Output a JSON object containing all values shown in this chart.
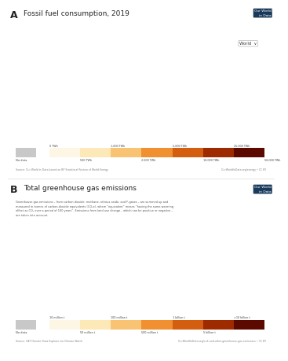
{
  "panel_a_title": "Fossil fuel consumption, 2019",
  "panel_b_title": "Total greenhouse gas emissions",
  "panel_b_subtitle": "Greenhouse gas emissions – from carbon dioxide, methane, nitrous oxide, and F-gases – are summed up and\nmeasured in tonnes of carbon-dioxide equivalents (CO₂e), where “equivalent” means “having the same warming\neffect as CO₂ over a period of 100 years”. Emissions from land use change – which can be positive or negative –\nare taken into account.",
  "panel_a_source": "Source: Our World in Data based on BP Statistical Review of World Energy",
  "panel_a_url": "OurWorldInData.org/energy • CC BY",
  "panel_b_source": "Source: CAT Climate Data Explorer via Climate Watch",
  "panel_b_url": "OurWorldInData.org/co2-and-other-greenhouse-gas-emissions • CC BY",
  "label_a": "A",
  "label_b": "B",
  "owid_badge_color": "#1a3a5c",
  "background_color": "#ffffff",
  "colorbar_a_colors": [
    "#fef6e4",
    "#fde8b8",
    "#f8c473",
    "#f09030",
    "#d45e10",
    "#9e2b00",
    "#5c0a00"
  ],
  "colorbar_b_colors": [
    "#fef6e4",
    "#fde8b8",
    "#f8c473",
    "#f09030",
    "#d45e10",
    "#9e2b00",
    "#5c0a00"
  ],
  "nodata_color": "#c8c8c8",
  "world_dropdown_text": "World",
  "cbar_a_upper": [
    "0 TWh",
    "",
    "1,000 TWh",
    "",
    "5,000 TWh",
    "",
    "25,000 TWh",
    ""
  ],
  "cbar_a_lower": [
    "",
    "500 TWh",
    "",
    "2,500 TWh",
    "",
    "10,000 TWh",
    "",
    "50,000 TWh"
  ],
  "cbar_b_upper": [
    "10 million t",
    "",
    "100 million t",
    "",
    "1 billion t",
    "",
    ">10 billion t"
  ],
  "cbar_b_lower": [
    "",
    "50 million t",
    "",
    "500 million t",
    "",
    "5 billion t",
    ""
  ],
  "fossil_colors": {
    "CHN": "#3d0800",
    "USA": "#7a1500",
    "RUS": "#b83000",
    "IND": "#c94000",
    "JPN": "#d05800",
    "DEU": "#d06800",
    "KOR": "#d07000",
    "CAN": "#c84500",
    "IRN": "#d07500",
    "SAU": "#d08000",
    "BRA": "#e09040",
    "MEX": "#e09840",
    "AUS": "#e8a040",
    "IDN": "#e8a848",
    "ZAF": "#c84500",
    "GBR": "#d06800",
    "FRA": "#d07500",
    "ITA": "#d08000",
    "ESP": "#d89048",
    "POL": "#d06000",
    "TUR": "#d07800",
    "UKR": "#d06500",
    "KAZ": "#d07000",
    "THA": "#e09040",
    "MYS": "#e09848",
    "VNM": "#e09040",
    "ARG": "#e09848",
    "EGY": "#e09848",
    "PAK": "#e0a050",
    "NGA": "#e8a848",
    "DZA": "#e8b060",
    "VEN": "#e8a848",
    "IRQ": "#e8a848",
    "ARE": "#e8b060",
    "KWT": "#e8b060",
    "QAT": "#e8b060",
    "NLD": "#d88040",
    "BEL": "#d88040",
    "CZE": "#d06000",
    "ROU": "#d06800",
    "GRC": "#d88048",
    "PRT": "#d88048",
    "HUN": "#d88048",
    "FIN": "#d88048",
    "SWE": "#d88048",
    "NOR": "#d88048",
    "DNK": "#d88048",
    "AUT": "#d88048",
    "CHE": "#d88048",
    "SGP": "#d88048",
    "TWN": "#d06800",
    "default_asia": "#e8b060",
    "default_africa": "#e8c080",
    "default_latam": "#e8a848",
    "default_europe": "#d88040",
    "no_data": "#c8c8c8",
    "ocean": "#ffffff"
  },
  "ghg_colors": {
    "CHN": "#3d0800",
    "USA": "#7a1500",
    "IND": "#b83000",
    "RUS": "#c94000",
    "BRA": "#c94800",
    "IDN": "#d05800",
    "JPN": "#d06000",
    "DEU": "#d06800",
    "CAN": "#d07000",
    "MEX": "#d07800",
    "AUS": "#d07800",
    "KOR": "#d06800",
    "IRN": "#d08000",
    "SAU": "#d88040",
    "ZAF": "#c94000",
    "GBR": "#d07000",
    "FRA": "#d07800",
    "ITA": "#d07800",
    "TUR": "#d07800",
    "ARG": "#d88040",
    "NGA": "#d88040",
    "PAK": "#d88040",
    "UKR": "#d07000",
    "KAZ": "#d08000",
    "THA": "#d88040",
    "MYS": "#e09040",
    "VNM": "#e09040",
    "COD": "#d88040",
    "ETH": "#d88040",
    "MMR": "#e09040",
    "COL": "#e09040",
    "AGO": "#d88040",
    "default_africa": "#e8a848",
    "default_latam": "#e09040",
    "default_asia": "#e09848",
    "default_europe": "#d88040",
    "no_data": "#c8c8c8",
    "ocean": "#ffffff"
  }
}
